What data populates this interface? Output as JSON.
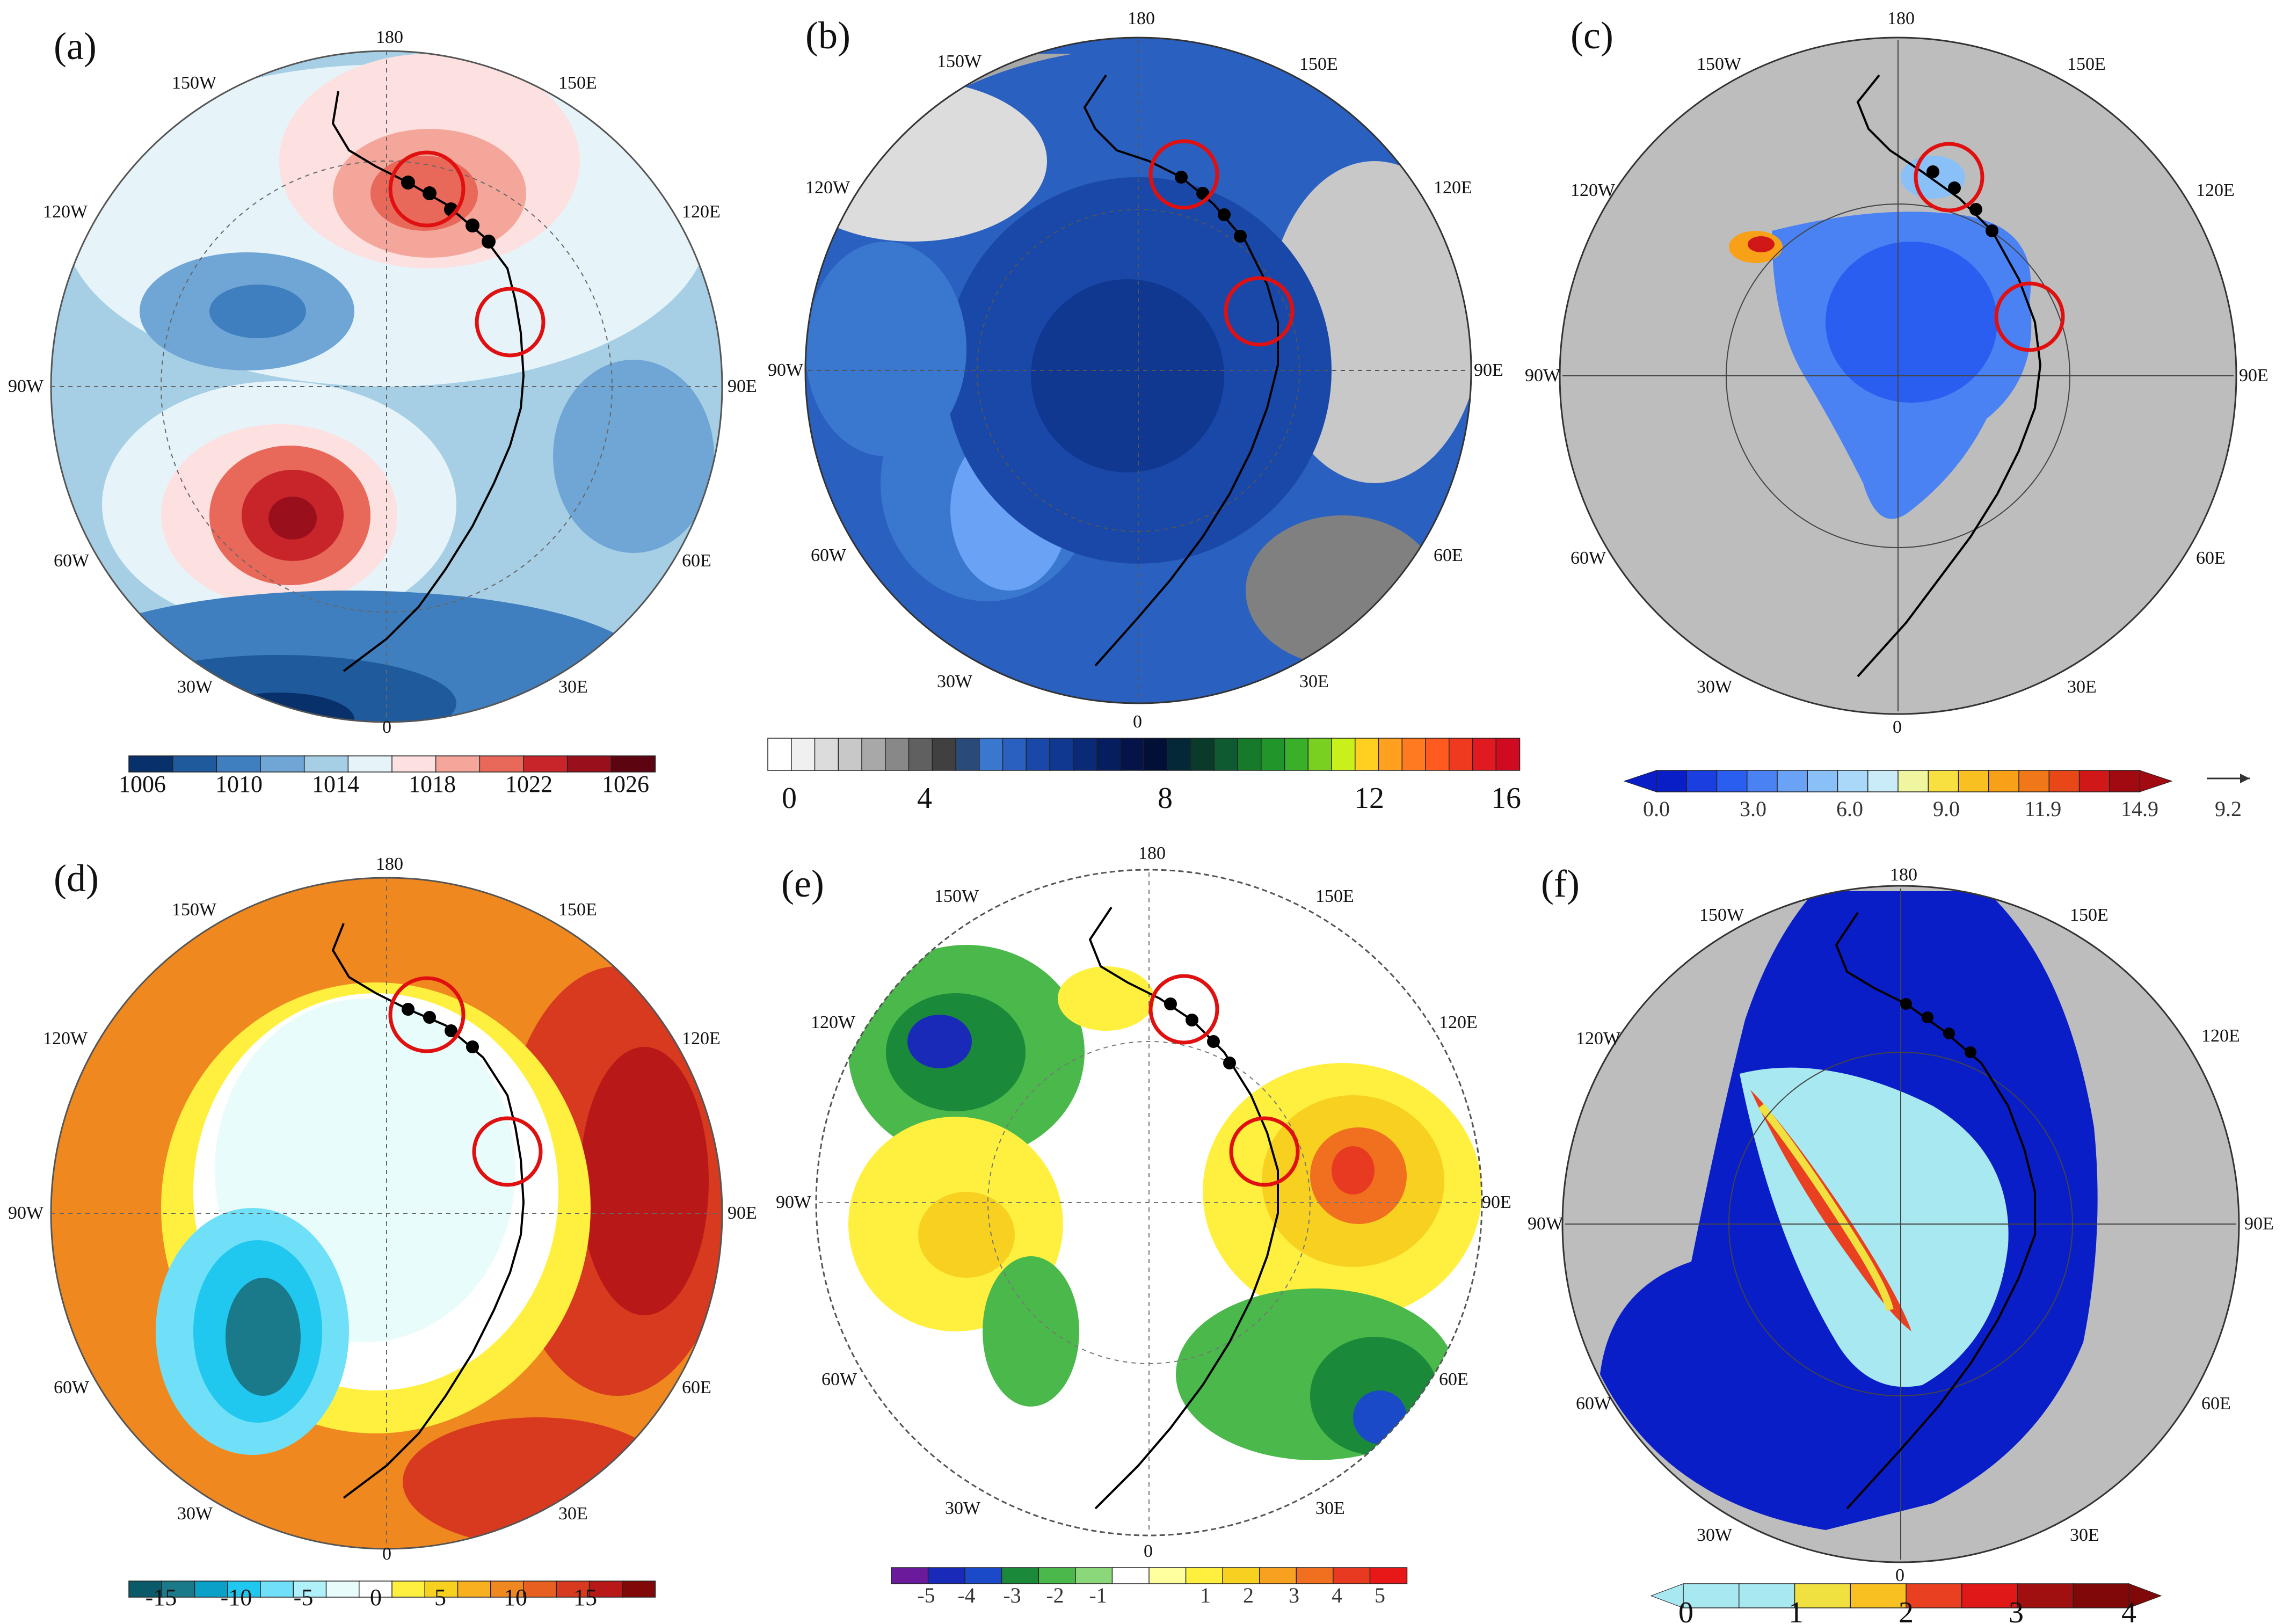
{
  "panels": [
    {
      "id": "a",
      "label": "(a)",
      "lon_labels": [
        "180",
        "150E",
        "120E",
        "90E",
        "60E",
        "30E",
        "0",
        "30W",
        "60W",
        "90W",
        "120W",
        "150W"
      ],
      "colorbar": {
        "ticks": [
          "1006",
          "1010",
          "1014",
          "1018",
          "1022",
          "1026"
        ],
        "colors": [
          "#08306b",
          "#1e5a9c",
          "#3f7fbf",
          "#6fa6d6",
          "#a6cfe6",
          "#e6f4fa",
          "#fde0e0",
          "#f4a69a",
          "#e8685a",
          "#c8252a",
          "#9a0f1c",
          "#5c0510"
        ]
      }
    },
    {
      "id": "b",
      "label": "(b)",
      "lon_labels": [
        "180",
        "150E",
        "120E",
        "90E",
        "60E",
        "30E",
        "0",
        "30W",
        "60W",
        "90W",
        "120W",
        "150W"
      ],
      "colorbar": {
        "ticks": [
          "0",
          "4",
          "8",
          "12",
          "16"
        ],
        "colors": [
          "#ffffff",
          "#f0f0f0",
          "#dcdcdc",
          "#c8c8c8",
          "#a8a8a8",
          "#888888",
          "#606060",
          "#404040",
          "#2a4a7a",
          "#3a78d0",
          "#2a60c0",
          "#1a48a8",
          "#103890",
          "#0a2a78",
          "#061e60",
          "#041448",
          "#021038",
          "#052838",
          "#0a3a2a",
          "#0f5a30",
          "#177a2a",
          "#20962a",
          "#3ab02a",
          "#7ad020",
          "#c8f01a",
          "#ffd020",
          "#ffa020",
          "#ff7a20",
          "#ff5a20",
          "#f03a20",
          "#e01a20",
          "#d00a20"
        ]
      }
    },
    {
      "id": "c",
      "label": "(c)",
      "lon_labels": [
        "180",
        "150E",
        "120E",
        "90E",
        "60E",
        "30E",
        "0",
        "30W",
        "60W",
        "90W",
        "120W",
        "150W"
      ],
      "colorbar": {
        "ticks": [
          "0.0",
          "3.0",
          "6.0",
          "9.0",
          "11.9",
          "14.9"
        ],
        "vector_ref": "9.2",
        "colors": [
          "#0a1ec8",
          "#1a3ee0",
          "#2a5ef0",
          "#4a82f4",
          "#6aa2f6",
          "#8ac0f8",
          "#aad8f8",
          "#caecf8",
          "#f0f6a0",
          "#f8e040",
          "#f8c020",
          "#f8a018",
          "#f07818",
          "#e84818",
          "#d01818",
          "#a00a10"
        ]
      }
    },
    {
      "id": "d",
      "label": "(d)",
      "lon_labels": [
        "180",
        "150E",
        "120E",
        "90E",
        "60E",
        "30E",
        "0",
        "30W",
        "60W",
        "90W",
        "120W",
        "150W"
      ],
      "colorbar": {
        "ticks": [
          "-15",
          "-10",
          "-5",
          "0",
          "5",
          "10",
          "15"
        ],
        "colors": [
          "#0a5a6a",
          "#1a7a8a",
          "#0aa0c8",
          "#20c8f0",
          "#70e0f8",
          "#b0f0f8",
          "#e8fcfc",
          "#ffffff",
          "#fff040",
          "#f8d020",
          "#f8b020",
          "#f08820",
          "#e86020",
          "#d83a20",
          "#b81818",
          "#800808"
        ]
      }
    },
    {
      "id": "e",
      "label": "(e)",
      "lon_labels": [
        "180",
        "150E",
        "120E",
        "90E",
        "60E",
        "30E",
        "0",
        "30W",
        "60W",
        "90W",
        "120W",
        "150W"
      ],
      "colorbar": {
        "ticks": [
          "-5",
          "-4",
          "-3",
          "-2",
          "-1",
          "1",
          "2",
          "3",
          "4",
          "5"
        ],
        "colors": [
          "#6a1a9a",
          "#1a2ab8",
          "#1a4ac8",
          "#1a8a3a",
          "#4ab84a",
          "#8ad87a",
          "#ffffff",
          "#ffffa0",
          "#fff040",
          "#f8d020",
          "#f8a020",
          "#f07020",
          "#e83a20",
          "#e81818"
        ]
      }
    },
    {
      "id": "f",
      "label": "(f)",
      "lon_labels": [
        "180",
        "150E",
        "120E",
        "90E",
        "60E",
        "30E",
        "0",
        "30W",
        "60W",
        "90W",
        "120W",
        "150W"
      ],
      "colorbar": {
        "ticks": [
          "0",
          "1",
          "2",
          "3",
          "4"
        ],
        "colors": [
          "#a8e8f0",
          "#a8e8f0",
          "#f0e040",
          "#f8c020",
          "#e84020",
          "#e01818",
          "#a01010",
          "#800808"
        ]
      }
    }
  ]
}
